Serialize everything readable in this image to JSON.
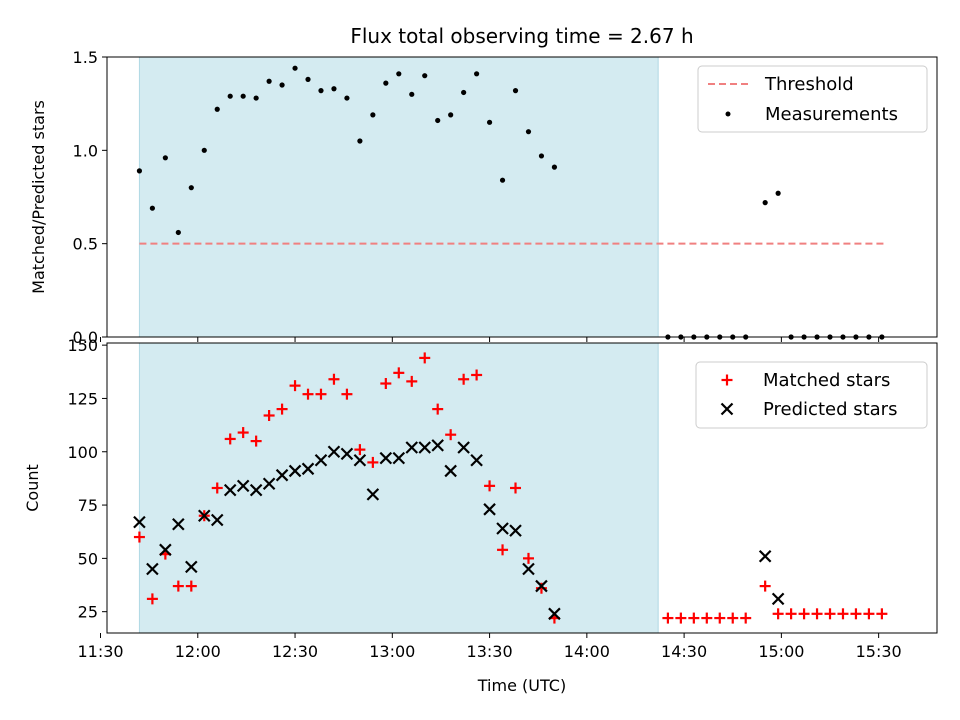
{
  "chart_data": [
    {
      "type": "scatter",
      "title": "Flux total observing time = 2.67 h",
      "xlabel": "",
      "ylabel": "Matched/Predicted stars",
      "xlim": [
        "11:32",
        "15:48"
      ],
      "ylim": [
        0,
        1.5
      ],
      "yticks": [
        "0.0",
        "0.5",
        "1.0",
        "1.5"
      ],
      "shaded_region": [
        "11:42",
        "14:22"
      ],
      "shade_color": "#d4ebf1",
      "legend_position": "top-right",
      "threshold": {
        "name": "Threshold",
        "y": 0.5,
        "x_range": [
          "11:42",
          "15:32"
        ],
        "color": "#f08080"
      },
      "series": [
        {
          "name": "Measurements",
          "color": "#000000",
          "marker": "dot",
          "points": [
            [
              "11:42",
              0.89
            ],
            [
              "11:46",
              0.69
            ],
            [
              "11:50",
              0.96
            ],
            [
              "11:54",
              0.56
            ],
            [
              "11:58",
              0.8
            ],
            [
              "12:02",
              1.0
            ],
            [
              "12:06",
              1.22
            ],
            [
              "12:10",
              1.29
            ],
            [
              "12:14",
              1.29
            ],
            [
              "12:18",
              1.28
            ],
            [
              "12:22",
              1.37
            ],
            [
              "12:26",
              1.35
            ],
            [
              "12:30",
              1.44
            ],
            [
              "12:34",
              1.38
            ],
            [
              "12:38",
              1.32
            ],
            [
              "12:42",
              1.33
            ],
            [
              "12:46",
              1.28
            ],
            [
              "12:50",
              1.05
            ],
            [
              "12:54",
              1.19
            ],
            [
              "12:58",
              1.36
            ],
            [
              "13:02",
              1.41
            ],
            [
              "13:06",
              1.3
            ],
            [
              "13:10",
              1.4
            ],
            [
              "13:14",
              1.16
            ],
            [
              "13:18",
              1.19
            ],
            [
              "13:22",
              1.31
            ],
            [
              "13:26",
              1.41
            ],
            [
              "13:30",
              1.15
            ],
            [
              "13:34",
              0.84
            ],
            [
              "13:38",
              1.32
            ],
            [
              "13:42",
              1.1
            ],
            [
              "13:46",
              0.97
            ],
            [
              "13:50",
              0.91
            ],
            [
              "14:25",
              0.0
            ],
            [
              "14:29",
              0.0
            ],
            [
              "14:33",
              0.0
            ],
            [
              "14:37",
              0.0
            ],
            [
              "14:41",
              0.0
            ],
            [
              "14:45",
              0.0
            ],
            [
              "14:49",
              0.0
            ],
            [
              "14:55",
              0.72
            ],
            [
              "14:59",
              0.77
            ],
            [
              "15:03",
              0.0
            ],
            [
              "15:07",
              0.0
            ],
            [
              "15:11",
              0.0
            ],
            [
              "15:15",
              0.0
            ],
            [
              "15:19",
              0.0
            ],
            [
              "15:23",
              0.0
            ],
            [
              "15:27",
              0.0
            ],
            [
              "15:31",
              0.0
            ]
          ]
        }
      ]
    },
    {
      "type": "scatter",
      "title": "",
      "xlabel": "Time (UTC)",
      "ylabel": "Count",
      "xlim": [
        "11:32",
        "15:48"
      ],
      "ylim": [
        15,
        151
      ],
      "yticks": [
        "25",
        "50",
        "75",
        "100",
        "125",
        "150"
      ],
      "xticks": [
        "11:30",
        "12:00",
        "12:30",
        "13:00",
        "13:30",
        "14:00",
        "14:30",
        "15:00",
        "15:30"
      ],
      "shaded_region": [
        "11:42",
        "14:22"
      ],
      "shade_color": "#d4ebf1",
      "legend_position": "top-right",
      "series": [
        {
          "name": "Matched stars",
          "color": "#ff0000",
          "marker": "plus",
          "points": [
            [
              "11:42",
              60
            ],
            [
              "11:46",
              31
            ],
            [
              "11:50",
              52
            ],
            [
              "11:54",
              37
            ],
            [
              "11:58",
              37
            ],
            [
              "12:02",
              70
            ],
            [
              "12:06",
              83
            ],
            [
              "12:10",
              106
            ],
            [
              "12:14",
              109
            ],
            [
              "12:18",
              105
            ],
            [
              "12:22",
              117
            ],
            [
              "12:26",
              120
            ],
            [
              "12:30",
              131
            ],
            [
              "12:34",
              127
            ],
            [
              "12:38",
              127
            ],
            [
              "12:42",
              134
            ],
            [
              "12:46",
              127
            ],
            [
              "12:50",
              101
            ],
            [
              "12:54",
              95
            ],
            [
              "12:58",
              132
            ],
            [
              "13:02",
              137
            ],
            [
              "13:06",
              133
            ],
            [
              "13:10",
              144
            ],
            [
              "13:14",
              120
            ],
            [
              "13:18",
              108
            ],
            [
              "13:22",
              134
            ],
            [
              "13:26",
              136
            ],
            [
              "13:30",
              84
            ],
            [
              "13:34",
              54
            ],
            [
              "13:38",
              83
            ],
            [
              "13:42",
              50
            ],
            [
              "13:46",
              36
            ],
            [
              "13:50",
              22
            ],
            [
              "14:25",
              22
            ],
            [
              "14:29",
              22
            ],
            [
              "14:33",
              22
            ],
            [
              "14:37",
              22
            ],
            [
              "14:41",
              22
            ],
            [
              "14:45",
              22
            ],
            [
              "14:49",
              22
            ],
            [
              "14:55",
              37
            ],
            [
              "14:59",
              24
            ],
            [
              "15:03",
              24
            ],
            [
              "15:07",
              24
            ],
            [
              "15:11",
              24
            ],
            [
              "15:15",
              24
            ],
            [
              "15:19",
              24
            ],
            [
              "15:23",
              24
            ],
            [
              "15:27",
              24
            ],
            [
              "15:31",
              24
            ]
          ]
        },
        {
          "name": "Predicted stars",
          "color": "#000000",
          "marker": "x",
          "points": [
            [
              "11:42",
              67
            ],
            [
              "11:46",
              45
            ],
            [
              "11:50",
              54
            ],
            [
              "11:54",
              66
            ],
            [
              "11:58",
              46
            ],
            [
              "12:02",
              70
            ],
            [
              "12:06",
              68
            ],
            [
              "12:10",
              82
            ],
            [
              "12:14",
              84
            ],
            [
              "12:18",
              82
            ],
            [
              "12:22",
              85
            ],
            [
              "12:26",
              89
            ],
            [
              "12:30",
              91
            ],
            [
              "12:34",
              92
            ],
            [
              "12:38",
              96
            ],
            [
              "12:42",
              100
            ],
            [
              "12:46",
              99
            ],
            [
              "12:50",
              96
            ],
            [
              "12:54",
              80
            ],
            [
              "12:58",
              97
            ],
            [
              "13:02",
              97
            ],
            [
              "13:06",
              102
            ],
            [
              "13:10",
              102
            ],
            [
              "13:14",
              103
            ],
            [
              "13:18",
              91
            ],
            [
              "13:22",
              102
            ],
            [
              "13:26",
              96
            ],
            [
              "13:30",
              73
            ],
            [
              "13:34",
              64
            ],
            [
              "13:38",
              63
            ],
            [
              "13:42",
              45
            ],
            [
              "13:46",
              37
            ],
            [
              "13:50",
              24
            ],
            [
              "14:55",
              51
            ],
            [
              "14:59",
              31
            ]
          ]
        }
      ]
    }
  ]
}
